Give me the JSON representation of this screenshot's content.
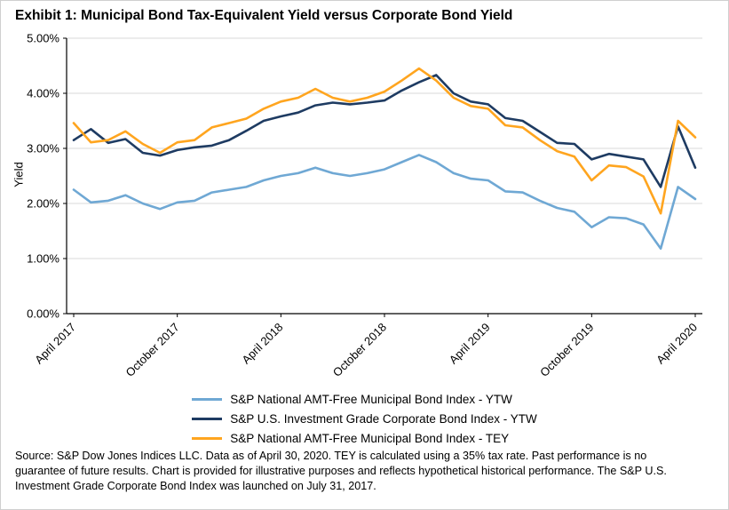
{
  "title": "Exhibit 1: Municipal Bond Tax-Equivalent Yield versus Corporate Bond Yield",
  "chart_data": {
    "type": "line",
    "title": "Exhibit 1: Municipal Bond Tax-Equivalent Yield versus Corporate Bond Yield",
    "xlabel": "",
    "ylabel": "Yield",
    "ylim": [
      0,
      5
    ],
    "y_ticks": [
      "0.00%",
      "1.00%",
      "2.00%",
      "3.00%",
      "4.00%",
      "5.00%"
    ],
    "grid": "horizontal",
    "legend_position": "bottom",
    "x": [
      "Apr 2017",
      "May 2017",
      "Jun 2017",
      "Jul 2017",
      "Aug 2017",
      "Sep 2017",
      "Oct 2017",
      "Nov 2017",
      "Dec 2017",
      "Jan 2018",
      "Feb 2018",
      "Mar 2018",
      "Apr 2018",
      "May 2018",
      "Jun 2018",
      "Jul 2018",
      "Aug 2018",
      "Sep 2018",
      "Oct 2018",
      "Nov 2018",
      "Dec 2018",
      "Jan 2019",
      "Feb 2019",
      "Mar 2019",
      "Apr 2019",
      "May 2019",
      "Jun 2019",
      "Jul 2019",
      "Aug 2019",
      "Sep 2019",
      "Oct 2019",
      "Nov 2019",
      "Dec 2019",
      "Jan 2020",
      "Feb 2020",
      "Mar 2020",
      "Apr 2020"
    ],
    "x_ticks": [
      {
        "index": 0,
        "label": "April 2017"
      },
      {
        "index": 6,
        "label": "October 2017"
      },
      {
        "index": 12,
        "label": "April 2018"
      },
      {
        "index": 18,
        "label": "October 2018"
      },
      {
        "index": 24,
        "label": "April 2019"
      },
      {
        "index": 30,
        "label": "October 2019"
      },
      {
        "index": 36,
        "label": "April 2020"
      }
    ],
    "series": [
      {
        "id": "muni-ytw",
        "name": "S&P National AMT-Free Municipal Bond Index - YTW",
        "color": "#6FA8D4",
        "values": [
          2.25,
          2.02,
          2.05,
          2.15,
          2.0,
          1.9,
          2.02,
          2.05,
          2.2,
          2.25,
          2.3,
          2.42,
          2.5,
          2.55,
          2.65,
          2.55,
          2.5,
          2.55,
          2.62,
          2.75,
          2.88,
          2.75,
          2.55,
          2.45,
          2.42,
          2.22,
          2.2,
          2.05,
          1.92,
          1.85,
          1.57,
          1.75,
          1.73,
          1.62,
          1.18,
          2.3,
          2.08
        ]
      },
      {
        "id": "corp-ytw",
        "name": "S&P U.S. Investment Grade Corporate Bond Index - YTW",
        "color": "#1E3B62",
        "values": [
          3.15,
          3.35,
          3.1,
          3.17,
          2.92,
          2.87,
          2.97,
          3.02,
          3.05,
          3.15,
          3.32,
          3.5,
          3.58,
          3.65,
          3.78,
          3.83,
          3.8,
          3.83,
          3.87,
          4.05,
          4.2,
          4.33,
          4.0,
          3.85,
          3.8,
          3.55,
          3.5,
          3.3,
          3.1,
          3.08,
          2.8,
          2.9,
          2.85,
          2.8,
          2.3,
          3.4,
          2.65
        ]
      },
      {
        "id": "muni-tey",
        "name": "S&P National AMT-Free Municipal Bond Index - TEY",
        "color": "#FFA51F",
        "values": [
          3.46,
          3.11,
          3.15,
          3.31,
          3.08,
          2.92,
          3.11,
          3.15,
          3.38,
          3.46,
          3.54,
          3.72,
          3.85,
          3.92,
          4.08,
          3.92,
          3.85,
          3.92,
          4.03,
          4.23,
          4.45,
          4.23,
          3.92,
          3.77,
          3.72,
          3.42,
          3.38,
          3.15,
          2.95,
          2.85,
          2.42,
          2.69,
          2.66,
          2.49,
          1.82,
          3.5,
          3.2
        ]
      }
    ]
  },
  "source": {
    "lines": [
      "Source: S&P Dow Jones Indices LLC. Data as of April 30, 2020. TEY is calculated using a 35% tax rate. Past performance is no",
      "guarantee of future results. Chart is provided for illustrative purposes and reflects hypothetical historical performance. The S&P U.S.",
      "Investment Grade Corporate Bond Index was launched on July 31, 2017."
    ]
  }
}
